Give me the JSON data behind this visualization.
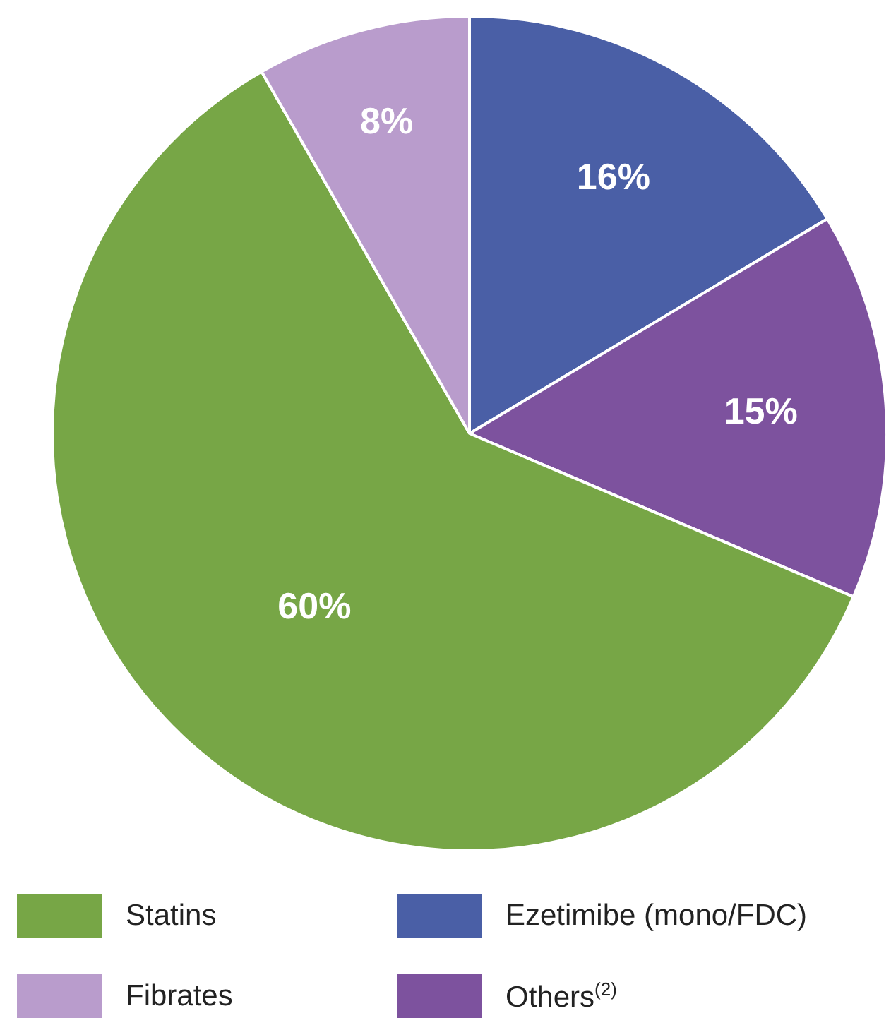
{
  "chart_data": {
    "type": "pie",
    "categories": [
      "Ezetimibe (mono/FDC)",
      "Others$^{(2)}$",
      "Statins",
      "Fibrates"
    ],
    "values": [
      16.4,
      15.0,
      60.3,
      8.3
    ],
    "colors": [
      "#4a5fa6",
      "#7d529e",
      "#77a646",
      "#b99ccc"
    ],
    "value_labels": [
      "16%",
      "15%",
      "60%",
      "8%"
    ],
    "legend": "bottom"
  }
}
